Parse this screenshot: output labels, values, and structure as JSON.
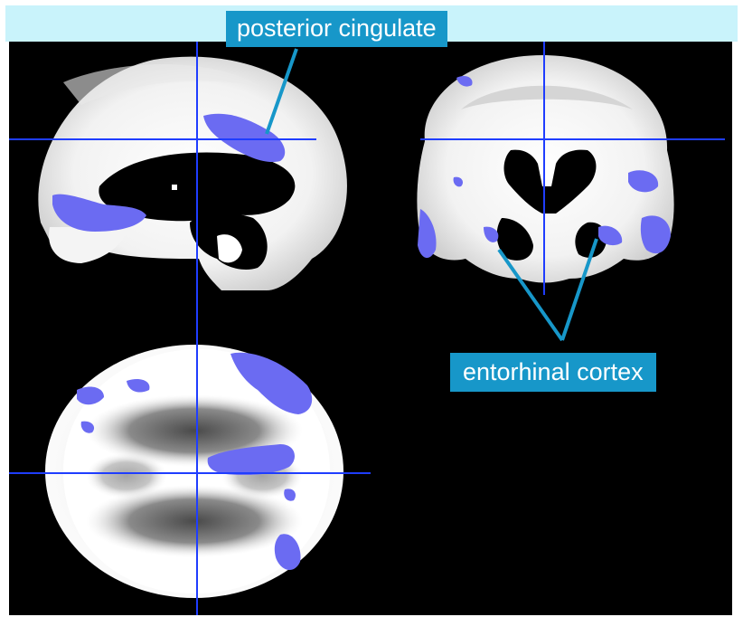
{
  "annotations": {
    "posterior_cingulate": "posterior cingulate",
    "entorhinal_cortex": "entorhinal cortex"
  },
  "colors": {
    "background": "#000000",
    "crosshair": "#1f3dff",
    "activation": "#6b6bf2",
    "callout": "#1797c9",
    "band": "#c9f3fb"
  },
  "views": [
    "sagittal",
    "coronal",
    "axial"
  ]
}
